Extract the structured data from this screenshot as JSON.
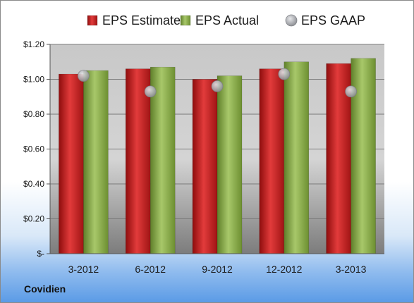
{
  "company": "Covidien",
  "chart_data": {
    "type": "bar",
    "categories": [
      "3-2012",
      "6-2012",
      "9-2012",
      "12-2012",
      "3-2013"
    ],
    "series": [
      {
        "name": "EPS Estimate",
        "kind": "bar",
        "color": "#cc1f1f",
        "values": [
          1.03,
          1.06,
          1.0,
          1.06,
          1.09
        ]
      },
      {
        "name": "EPS Actual",
        "kind": "bar",
        "color": "#8db04b",
        "values": [
          1.05,
          1.07,
          1.02,
          1.1,
          1.12
        ]
      },
      {
        "name": "EPS GAAP",
        "kind": "marker",
        "color": "#a8aab0",
        "values": [
          1.02,
          0.93,
          0.96,
          1.03,
          0.93
        ]
      }
    ],
    "ylim": [
      0,
      1.2
    ],
    "yticks": [
      0,
      0.2,
      0.4,
      0.6,
      0.8,
      1.0,
      1.2
    ],
    "ytick_labels": [
      "$-",
      "$0.20",
      "$0.40",
      "$0.60",
      "$0.80",
      "$1.00",
      "$1.20"
    ],
    "grid": true,
    "legend_position": "top"
  }
}
